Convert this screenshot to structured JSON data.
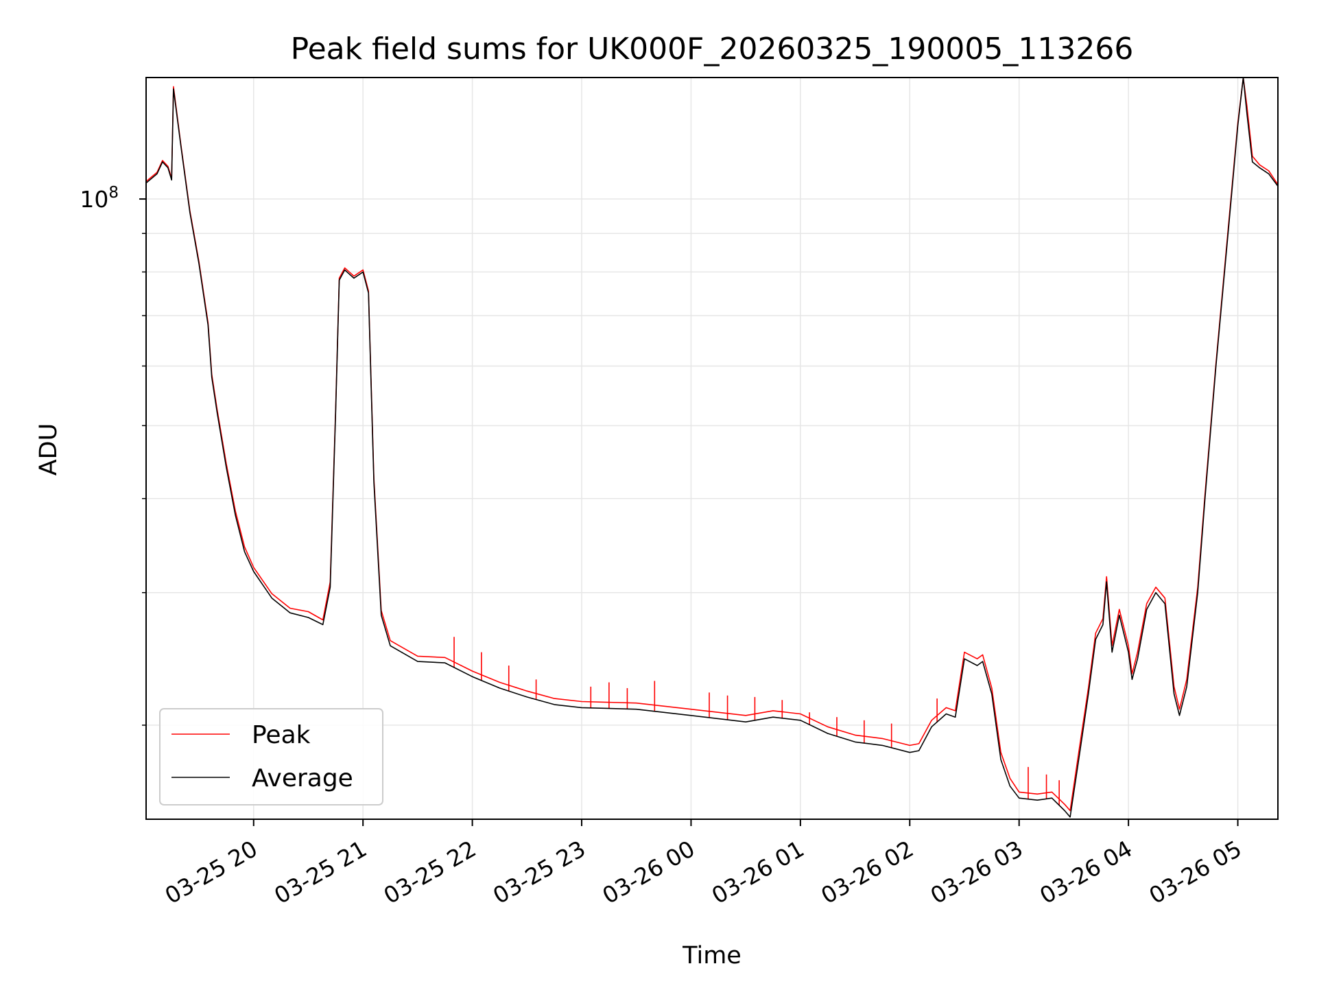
{
  "chart_data": {
    "type": "line",
    "title": "Peak field sums for UK000F_20260325_190005_113266",
    "xlabel": "Time",
    "ylabel": "ADU",
    "y_scale": "log",
    "ylim": [
      15000000,
      145000000
    ],
    "xlim": [
      "2026-03-25 19:01",
      "2026-03-26 05:22"
    ],
    "y_major_ticks": [
      {
        "value": 100000000,
        "label": "10",
        "exponent": "8"
      }
    ],
    "y_minor_ticks": [
      20000000,
      30000000,
      40000000,
      50000000,
      60000000,
      70000000,
      80000000,
      90000000
    ],
    "x_ticks": [
      {
        "value": "2026-03-25 20:00",
        "label": "03-25 20"
      },
      {
        "value": "2026-03-25 21:00",
        "label": "03-25 21"
      },
      {
        "value": "2026-03-25 22:00",
        "label": "03-25 22"
      },
      {
        "value": "2026-03-25 23:00",
        "label": "03-25 23"
      },
      {
        "value": "2026-03-26 00:00",
        "label": "03-26 00"
      },
      {
        "value": "2026-03-26 01:00",
        "label": "03-26 01"
      },
      {
        "value": "2026-03-26 02:00",
        "label": "03-26 02"
      },
      {
        "value": "2026-03-26 03:00",
        "label": "03-26 03"
      },
      {
        "value": "2026-03-26 04:00",
        "label": "03-26 04"
      },
      {
        "value": "2026-03-26 05:00",
        "label": "03-26 05"
      }
    ],
    "grid": true,
    "legend_position": "lower-left",
    "colors": {
      "peak": "#ff0000",
      "average": "#000000",
      "grid": "#e6e6e6"
    },
    "series": [
      {
        "name": "Average",
        "color": "#000000",
        "points": [
          [
            "2026-03-25 19:01",
            105000000
          ],
          [
            "2026-03-25 19:07",
            108000000
          ],
          [
            "2026-03-25 19:10",
            112000000
          ],
          [
            "2026-03-25 19:13",
            110000000
          ],
          [
            "2026-03-25 19:15",
            106000000
          ],
          [
            "2026-03-25 19:16",
            140000000
          ],
          [
            "2026-03-25 19:20",
            118000000
          ],
          [
            "2026-03-25 19:25",
            96000000
          ],
          [
            "2026-03-25 19:30",
            82000000
          ],
          [
            "2026-03-25 19:35",
            68000000
          ],
          [
            "2026-03-25 19:37",
            58000000
          ],
          [
            "2026-03-25 19:40",
            52000000
          ],
          [
            "2026-03-25 19:45",
            44000000
          ],
          [
            "2026-03-25 19:50",
            38000000
          ],
          [
            "2026-03-25 19:55",
            34000000
          ],
          [
            "2026-03-25 20:00",
            32000000
          ],
          [
            "2026-03-25 20:10",
            29500000
          ],
          [
            "2026-03-25 20:20",
            28200000
          ],
          [
            "2026-03-25 20:30",
            27800000
          ],
          [
            "2026-03-25 20:38",
            27200000
          ],
          [
            "2026-03-25 20:42",
            30500000
          ],
          [
            "2026-03-25 20:45",
            52000000
          ],
          [
            "2026-03-25 20:47",
            78000000
          ],
          [
            "2026-03-25 20:50",
            80500000
          ],
          [
            "2026-03-25 20:55",
            78500000
          ],
          [
            "2026-03-25 21:00",
            80000000
          ],
          [
            "2026-03-25 21:03",
            75000000
          ],
          [
            "2026-03-25 21:06",
            42000000
          ],
          [
            "2026-03-25 21:10",
            28000000
          ],
          [
            "2026-03-25 21:15",
            25500000
          ],
          [
            "2026-03-25 21:30",
            24300000
          ],
          [
            "2026-03-25 21:45",
            24200000
          ],
          [
            "2026-03-25 22:00",
            23200000
          ],
          [
            "2026-03-25 22:15",
            22400000
          ],
          [
            "2026-03-25 22:30",
            21800000
          ],
          [
            "2026-03-25 22:45",
            21300000
          ],
          [
            "2026-03-25 23:00",
            21100000
          ],
          [
            "2026-03-25 23:30",
            21000000
          ],
          [
            "2026-03-26 00:00",
            20600000
          ],
          [
            "2026-03-26 00:30",
            20200000
          ],
          [
            "2026-03-26 00:45",
            20500000
          ],
          [
            "2026-03-26 01:00",
            20300000
          ],
          [
            "2026-03-26 01:15",
            19500000
          ],
          [
            "2026-03-26 01:30",
            19000000
          ],
          [
            "2026-03-26 01:45",
            18800000
          ],
          [
            "2026-03-26 02:00",
            18400000
          ],
          [
            "2026-03-26 02:05",
            18500000
          ],
          [
            "2026-03-26 02:12",
            19900000
          ],
          [
            "2026-03-26 02:20",
            20700000
          ],
          [
            "2026-03-26 02:25",
            20500000
          ],
          [
            "2026-03-26 02:30",
            24500000
          ],
          [
            "2026-03-26 02:37",
            24000000
          ],
          [
            "2026-03-26 02:40",
            24300000
          ],
          [
            "2026-03-26 02:45",
            22000000
          ],
          [
            "2026-03-26 02:50",
            18000000
          ],
          [
            "2026-03-26 02:55",
            16600000
          ],
          [
            "2026-03-26 03:00",
            16000000
          ],
          [
            "2026-03-26 03:10",
            15900000
          ],
          [
            "2026-03-26 03:18",
            16000000
          ],
          [
            "2026-03-26 03:25",
            15400000
          ],
          [
            "2026-03-26 03:28",
            15100000
          ],
          [
            "2026-03-26 03:33",
            18200000
          ],
          [
            "2026-03-26 03:38",
            22000000
          ],
          [
            "2026-03-26 03:42",
            26000000
          ],
          [
            "2026-03-26 03:46",
            27200000
          ],
          [
            "2026-03-26 03:48",
            31000000
          ],
          [
            "2026-03-26 03:51",
            25000000
          ],
          [
            "2026-03-26 03:55",
            28000000
          ],
          [
            "2026-03-26 04:00",
            25000000
          ],
          [
            "2026-03-26 04:02",
            23000000
          ],
          [
            "2026-03-26 04:05",
            24500000
          ],
          [
            "2026-03-26 04:10",
            28500000
          ],
          [
            "2026-03-26 04:15",
            30000000
          ],
          [
            "2026-03-26 04:20",
            29000000
          ],
          [
            "2026-03-26 04:25",
            22000000
          ],
          [
            "2026-03-26 04:28",
            20600000
          ],
          [
            "2026-03-26 04:32",
            22500000
          ],
          [
            "2026-03-26 04:38",
            30000000
          ],
          [
            "2026-03-26 04:42",
            40000000
          ],
          [
            "2026-03-26 04:48",
            60000000
          ],
          [
            "2026-03-26 04:55",
            92000000
          ],
          [
            "2026-03-26 05:00",
            125000000
          ],
          [
            "2026-03-26 05:03",
            145000000
          ],
          [
            "2026-03-26 05:05",
            130000000
          ],
          [
            "2026-03-26 05:08",
            112000000
          ],
          [
            "2026-03-26 05:12",
            110000000
          ],
          [
            "2026-03-26 05:17",
            108000000
          ],
          [
            "2026-03-26 05:22",
            104000000
          ]
        ]
      },
      {
        "name": "Peak",
        "color": "#ff0000",
        "points": [
          [
            "2026-03-25 19:01",
            105500000
          ],
          [
            "2026-03-25 19:07",
            108500000
          ],
          [
            "2026-03-25 19:10",
            112500000
          ],
          [
            "2026-03-25 19:13",
            110500000
          ],
          [
            "2026-03-25 19:15",
            106500000
          ],
          [
            "2026-03-25 19:16",
            141000000
          ],
          [
            "2026-03-25 19:20",
            118500000
          ],
          [
            "2026-03-25 19:25",
            96500000
          ],
          [
            "2026-03-25 19:30",
            82500000
          ],
          [
            "2026-03-25 19:35",
            68500000
          ],
          [
            "2026-03-25 19:37",
            58500000
          ],
          [
            "2026-03-25 19:40",
            52500000
          ],
          [
            "2026-03-25 19:45",
            44500000
          ],
          [
            "2026-03-25 19:50",
            38500000
          ],
          [
            "2026-03-25 19:55",
            34500000
          ],
          [
            "2026-03-25 20:00",
            32400000
          ],
          [
            "2026-03-25 20:10",
            29900000
          ],
          [
            "2026-03-25 20:20",
            28600000
          ],
          [
            "2026-03-25 20:30",
            28300000
          ],
          [
            "2026-03-25 20:38",
            27600000
          ],
          [
            "2026-03-25 20:42",
            31000000
          ],
          [
            "2026-03-25 20:45",
            52500000
          ],
          [
            "2026-03-25 20:47",
            78500000
          ],
          [
            "2026-03-25 20:50",
            81000000
          ],
          [
            "2026-03-25 20:55",
            79000000
          ],
          [
            "2026-03-25 21:00",
            80500000
          ],
          [
            "2026-03-25 21:03",
            75500000
          ],
          [
            "2026-03-25 21:06",
            42500000
          ],
          [
            "2026-03-25 21:10",
            28400000
          ],
          [
            "2026-03-25 21:15",
            25900000
          ],
          [
            "2026-03-25 21:30",
            24700000
          ],
          [
            "2026-03-25 21:45",
            24600000
          ],
          [
            "2026-03-25 22:00",
            23600000
          ],
          [
            "2026-03-25 22:15",
            22800000
          ],
          [
            "2026-03-25 22:30",
            22200000
          ],
          [
            "2026-03-25 22:45",
            21700000
          ],
          [
            "2026-03-25 23:00",
            21500000
          ],
          [
            "2026-03-25 23:30",
            21400000
          ],
          [
            "2026-03-26 00:00",
            21000000
          ],
          [
            "2026-03-26 00:30",
            20600000
          ],
          [
            "2026-03-26 00:45",
            20900000
          ],
          [
            "2026-03-26 01:00",
            20700000
          ],
          [
            "2026-03-26 01:15",
            19900000
          ],
          [
            "2026-03-26 01:30",
            19400000
          ],
          [
            "2026-03-26 01:45",
            19200000
          ],
          [
            "2026-03-26 02:00",
            18800000
          ],
          [
            "2026-03-26 02:05",
            18900000
          ],
          [
            "2026-03-26 02:12",
            20300000
          ],
          [
            "2026-03-26 02:20",
            21100000
          ],
          [
            "2026-03-26 02:25",
            20900000
          ],
          [
            "2026-03-26 02:30",
            25000000
          ],
          [
            "2026-03-26 02:37",
            24500000
          ],
          [
            "2026-03-26 02:40",
            24800000
          ],
          [
            "2026-03-26 02:45",
            22400000
          ],
          [
            "2026-03-26 02:50",
            18400000
          ],
          [
            "2026-03-26 02:55",
            17000000
          ],
          [
            "2026-03-26 03:00",
            16300000
          ],
          [
            "2026-03-26 03:10",
            16200000
          ],
          [
            "2026-03-26 03:18",
            16300000
          ],
          [
            "2026-03-26 03:25",
            15700000
          ],
          [
            "2026-03-26 03:28",
            15400000
          ],
          [
            "2026-03-26 03:33",
            18600000
          ],
          [
            "2026-03-26 03:38",
            22400000
          ],
          [
            "2026-03-26 03:42",
            26500000
          ],
          [
            "2026-03-26 03:46",
            27700000
          ],
          [
            "2026-03-26 03:48",
            31500000
          ],
          [
            "2026-03-26 03:51",
            25500000
          ],
          [
            "2026-03-26 03:55",
            28500000
          ],
          [
            "2026-03-26 04:00",
            25500000
          ],
          [
            "2026-03-26 04:02",
            23400000
          ],
          [
            "2026-03-26 04:05",
            25000000
          ],
          [
            "2026-03-26 04:10",
            29000000
          ],
          [
            "2026-03-26 04:15",
            30500000
          ],
          [
            "2026-03-26 04:20",
            29500000
          ],
          [
            "2026-03-26 04:25",
            22500000
          ],
          [
            "2026-03-26 04:28",
            21000000
          ],
          [
            "2026-03-26 04:32",
            23000000
          ],
          [
            "2026-03-26 04:38",
            30500000
          ],
          [
            "2026-03-26 04:42",
            40500000
          ],
          [
            "2026-03-26 04:48",
            60500000
          ],
          [
            "2026-03-26 04:55",
            93000000
          ],
          [
            "2026-03-26 05:00",
            126000000
          ],
          [
            "2026-03-26 05:03",
            145000000
          ],
          [
            "2026-03-26 05:05",
            133000000
          ],
          [
            "2026-03-26 05:08",
            114000000
          ],
          [
            "2026-03-26 05:12",
            111000000
          ],
          [
            "2026-03-26 05:17",
            109000000
          ],
          [
            "2026-03-26 05:22",
            104500000
          ]
        ],
        "spikes": [
          [
            "2026-03-25 21:50",
            26200000
          ],
          [
            "2026-03-25 22:05",
            25000000
          ],
          [
            "2026-03-25 22:20",
            24000000
          ],
          [
            "2026-03-25 22:35",
            23000000
          ],
          [
            "2026-03-25 23:05",
            22500000
          ],
          [
            "2026-03-25 23:15",
            22800000
          ],
          [
            "2026-03-25 23:25",
            22400000
          ],
          [
            "2026-03-25 23:40",
            22900000
          ],
          [
            "2026-03-26 00:10",
            22100000
          ],
          [
            "2026-03-26 00:20",
            21900000
          ],
          [
            "2026-03-26 00:35",
            21800000
          ],
          [
            "2026-03-26 00:50",
            21600000
          ],
          [
            "2026-03-26 01:05",
            20800000
          ],
          [
            "2026-03-26 01:20",
            20500000
          ],
          [
            "2026-03-26 01:35",
            20300000
          ],
          [
            "2026-03-26 01:50",
            20100000
          ],
          [
            "2026-03-26 02:15",
            21700000
          ],
          [
            "2026-03-26 03:05",
            17600000
          ],
          [
            "2026-03-26 03:15",
            17200000
          ],
          [
            "2026-03-26 03:22",
            16900000
          ]
        ]
      }
    ]
  }
}
